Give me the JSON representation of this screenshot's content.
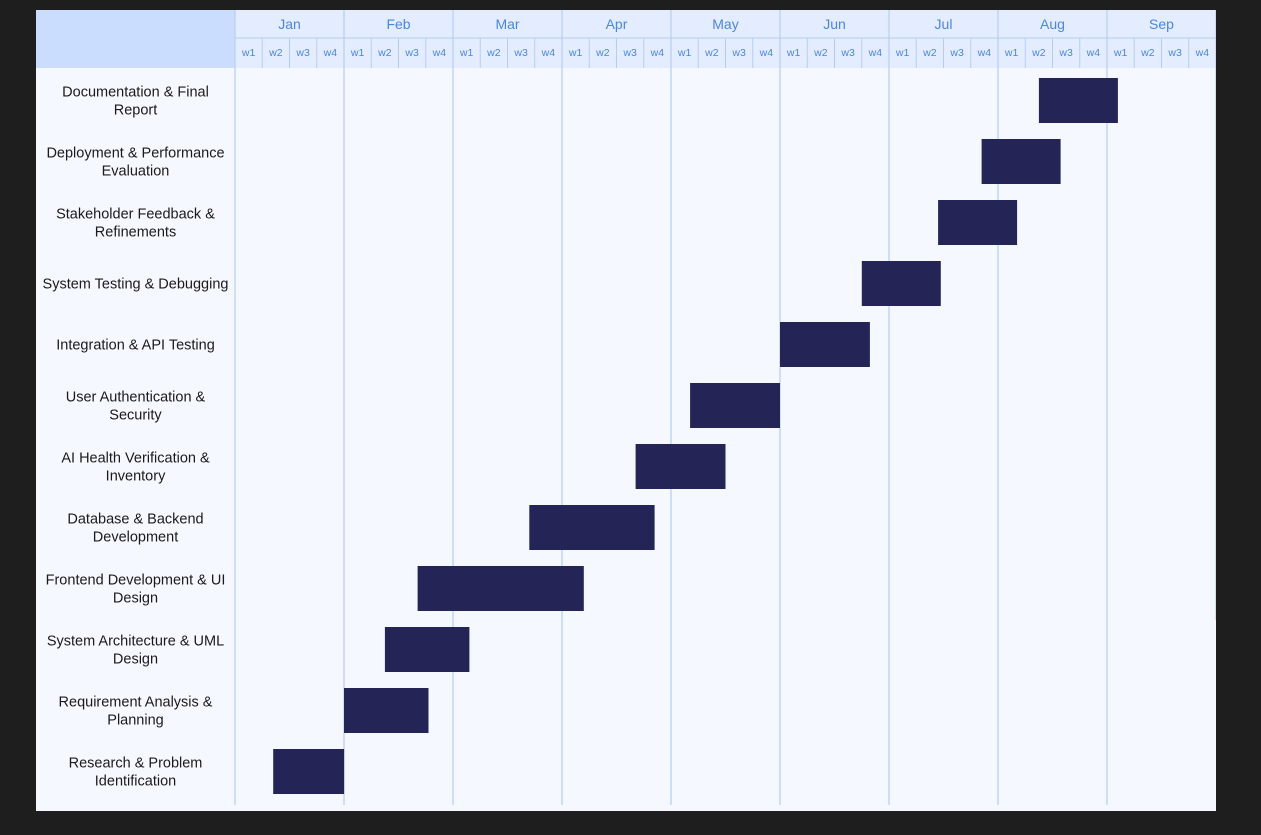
{
  "colors": {
    "background": "#1e1e1e",
    "chart_background": "#f5f9ff",
    "header_fill": "#e3edff",
    "corner_fill": "#cbddff",
    "grid_line": "#b6cdf2",
    "header_text": "#4a86e0",
    "bar": "#252456",
    "task_text": "#1a1a1a"
  },
  "chart_data": {
    "type": "gantt",
    "time_unit": "week",
    "months": [
      "Jan",
      "Feb",
      "Mar",
      "Apr",
      "May",
      "Jun",
      "Jul",
      "Aug",
      "Sep"
    ],
    "week_labels": [
      "w1",
      "w2",
      "w3",
      "w4"
    ],
    "tasks": [
      {
        "name": "Documentation & Final Report",
        "start_month": "Aug",
        "start_week": 2.5,
        "duration_weeks": 2.9
      },
      {
        "name": "Deployment & Performance Evaluation",
        "start_month": "Jul",
        "start_week": 4.4,
        "duration_weeks": 2.9
      },
      {
        "name": "Stakeholder Feedback & Refinements",
        "start_month": "Jul",
        "start_week": 2.8,
        "duration_weeks": 2.9
      },
      {
        "name": "System Testing & Debugging",
        "start_month": "Jun",
        "start_week": 4.0,
        "duration_weeks": 2.9
      },
      {
        "name": "Integration & API Testing",
        "start_month": "Jun",
        "start_week": 1.0,
        "duration_weeks": 3.3
      },
      {
        "name": "User Authentication & Security",
        "start_month": "May",
        "start_week": 1.7,
        "duration_weeks": 3.3
      },
      {
        "name": "AI Health Verification & Inventory",
        "start_month": "Apr",
        "start_week": 3.7,
        "duration_weeks": 3.3
      },
      {
        "name": "Database & Backend Development",
        "start_month": "Mar",
        "start_week": 3.8,
        "duration_weeks": 4.6
      },
      {
        "name": "Frontend Development & UI Design",
        "start_month": "Feb",
        "start_week": 3.7,
        "duration_weeks": 6.1
      },
      {
        "name": "System Architecture & UML Design",
        "start_month": "Feb",
        "start_week": 2.5,
        "duration_weeks": 3.1
      },
      {
        "name": "Requirement Analysis & Planning",
        "start_month": "Feb",
        "start_week": 1.0,
        "duration_weeks": 3.1
      },
      {
        "name": "Research & Problem Identification",
        "start_month": "Jan",
        "start_week": 2.4,
        "duration_weeks": 2.6
      }
    ]
  }
}
